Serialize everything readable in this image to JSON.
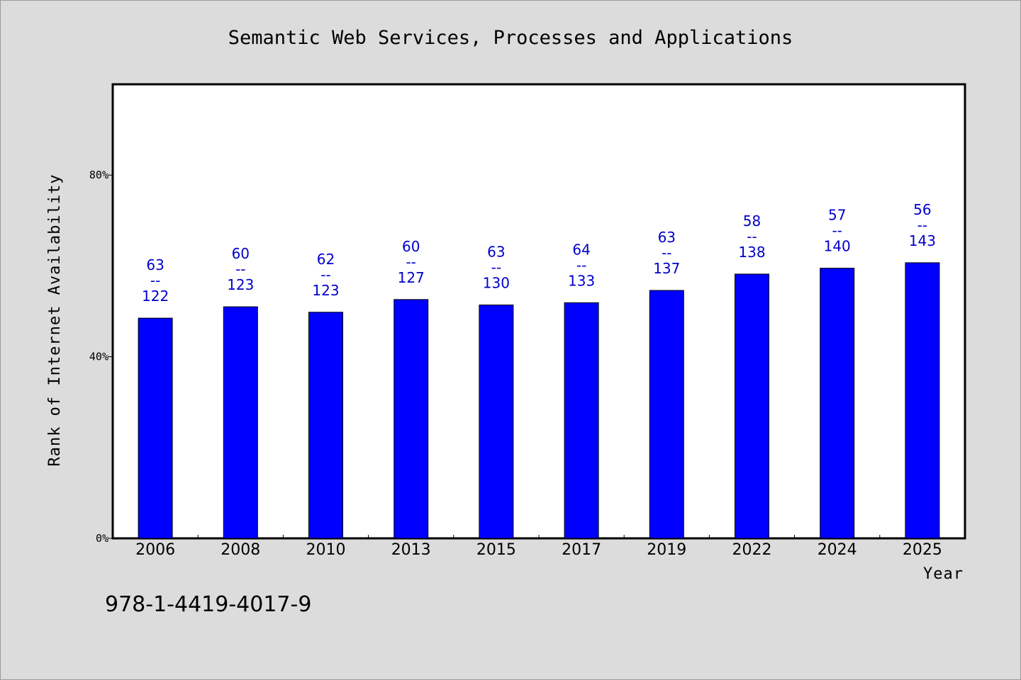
{
  "chart_data": {
    "type": "bar",
    "title": "Semantic Web Services, Processes and Applications",
    "xlabel": "Year",
    "ylabel": "Rank of Internet Availability",
    "categories": [
      "2006",
      "2008",
      "2010",
      "2013",
      "2015",
      "2017",
      "2019",
      "2022",
      "2024",
      "2025"
    ],
    "values": [
      48.5,
      51.0,
      49.8,
      52.6,
      51.4,
      51.9,
      54.6,
      58.2,
      59.5,
      60.7
    ],
    "annotations": [
      {
        "top": "63",
        "sep": "--",
        "bottom": "122"
      },
      {
        "top": "60",
        "sep": "--",
        "bottom": "123"
      },
      {
        "top": "62",
        "sep": "--",
        "bottom": "123"
      },
      {
        "top": "60",
        "sep": "--",
        "bottom": "127"
      },
      {
        "top": "63",
        "sep": "--",
        "bottom": "130"
      },
      {
        "top": "64",
        "sep": "--",
        "bottom": "133"
      },
      {
        "top": "63",
        "sep": "--",
        "bottom": "137"
      },
      {
        "top": "58",
        "sep": "--",
        "bottom": "138"
      },
      {
        "top": "57",
        "sep": "--",
        "bottom": "140"
      },
      {
        "top": "56",
        "sep": "--",
        "bottom": "143"
      }
    ],
    "yticks": [
      0,
      40,
      80
    ],
    "ytick_labels": [
      "0%",
      "40%",
      "80%"
    ],
    "ylim": [
      0,
      100
    ],
    "grid": false,
    "colors": {
      "bar": "#0000ff",
      "label": "#0000cc",
      "background": "#dcdcdc",
      "plot_background": "#ffffff"
    }
  },
  "footnote": "978-1-4419-4017-9"
}
